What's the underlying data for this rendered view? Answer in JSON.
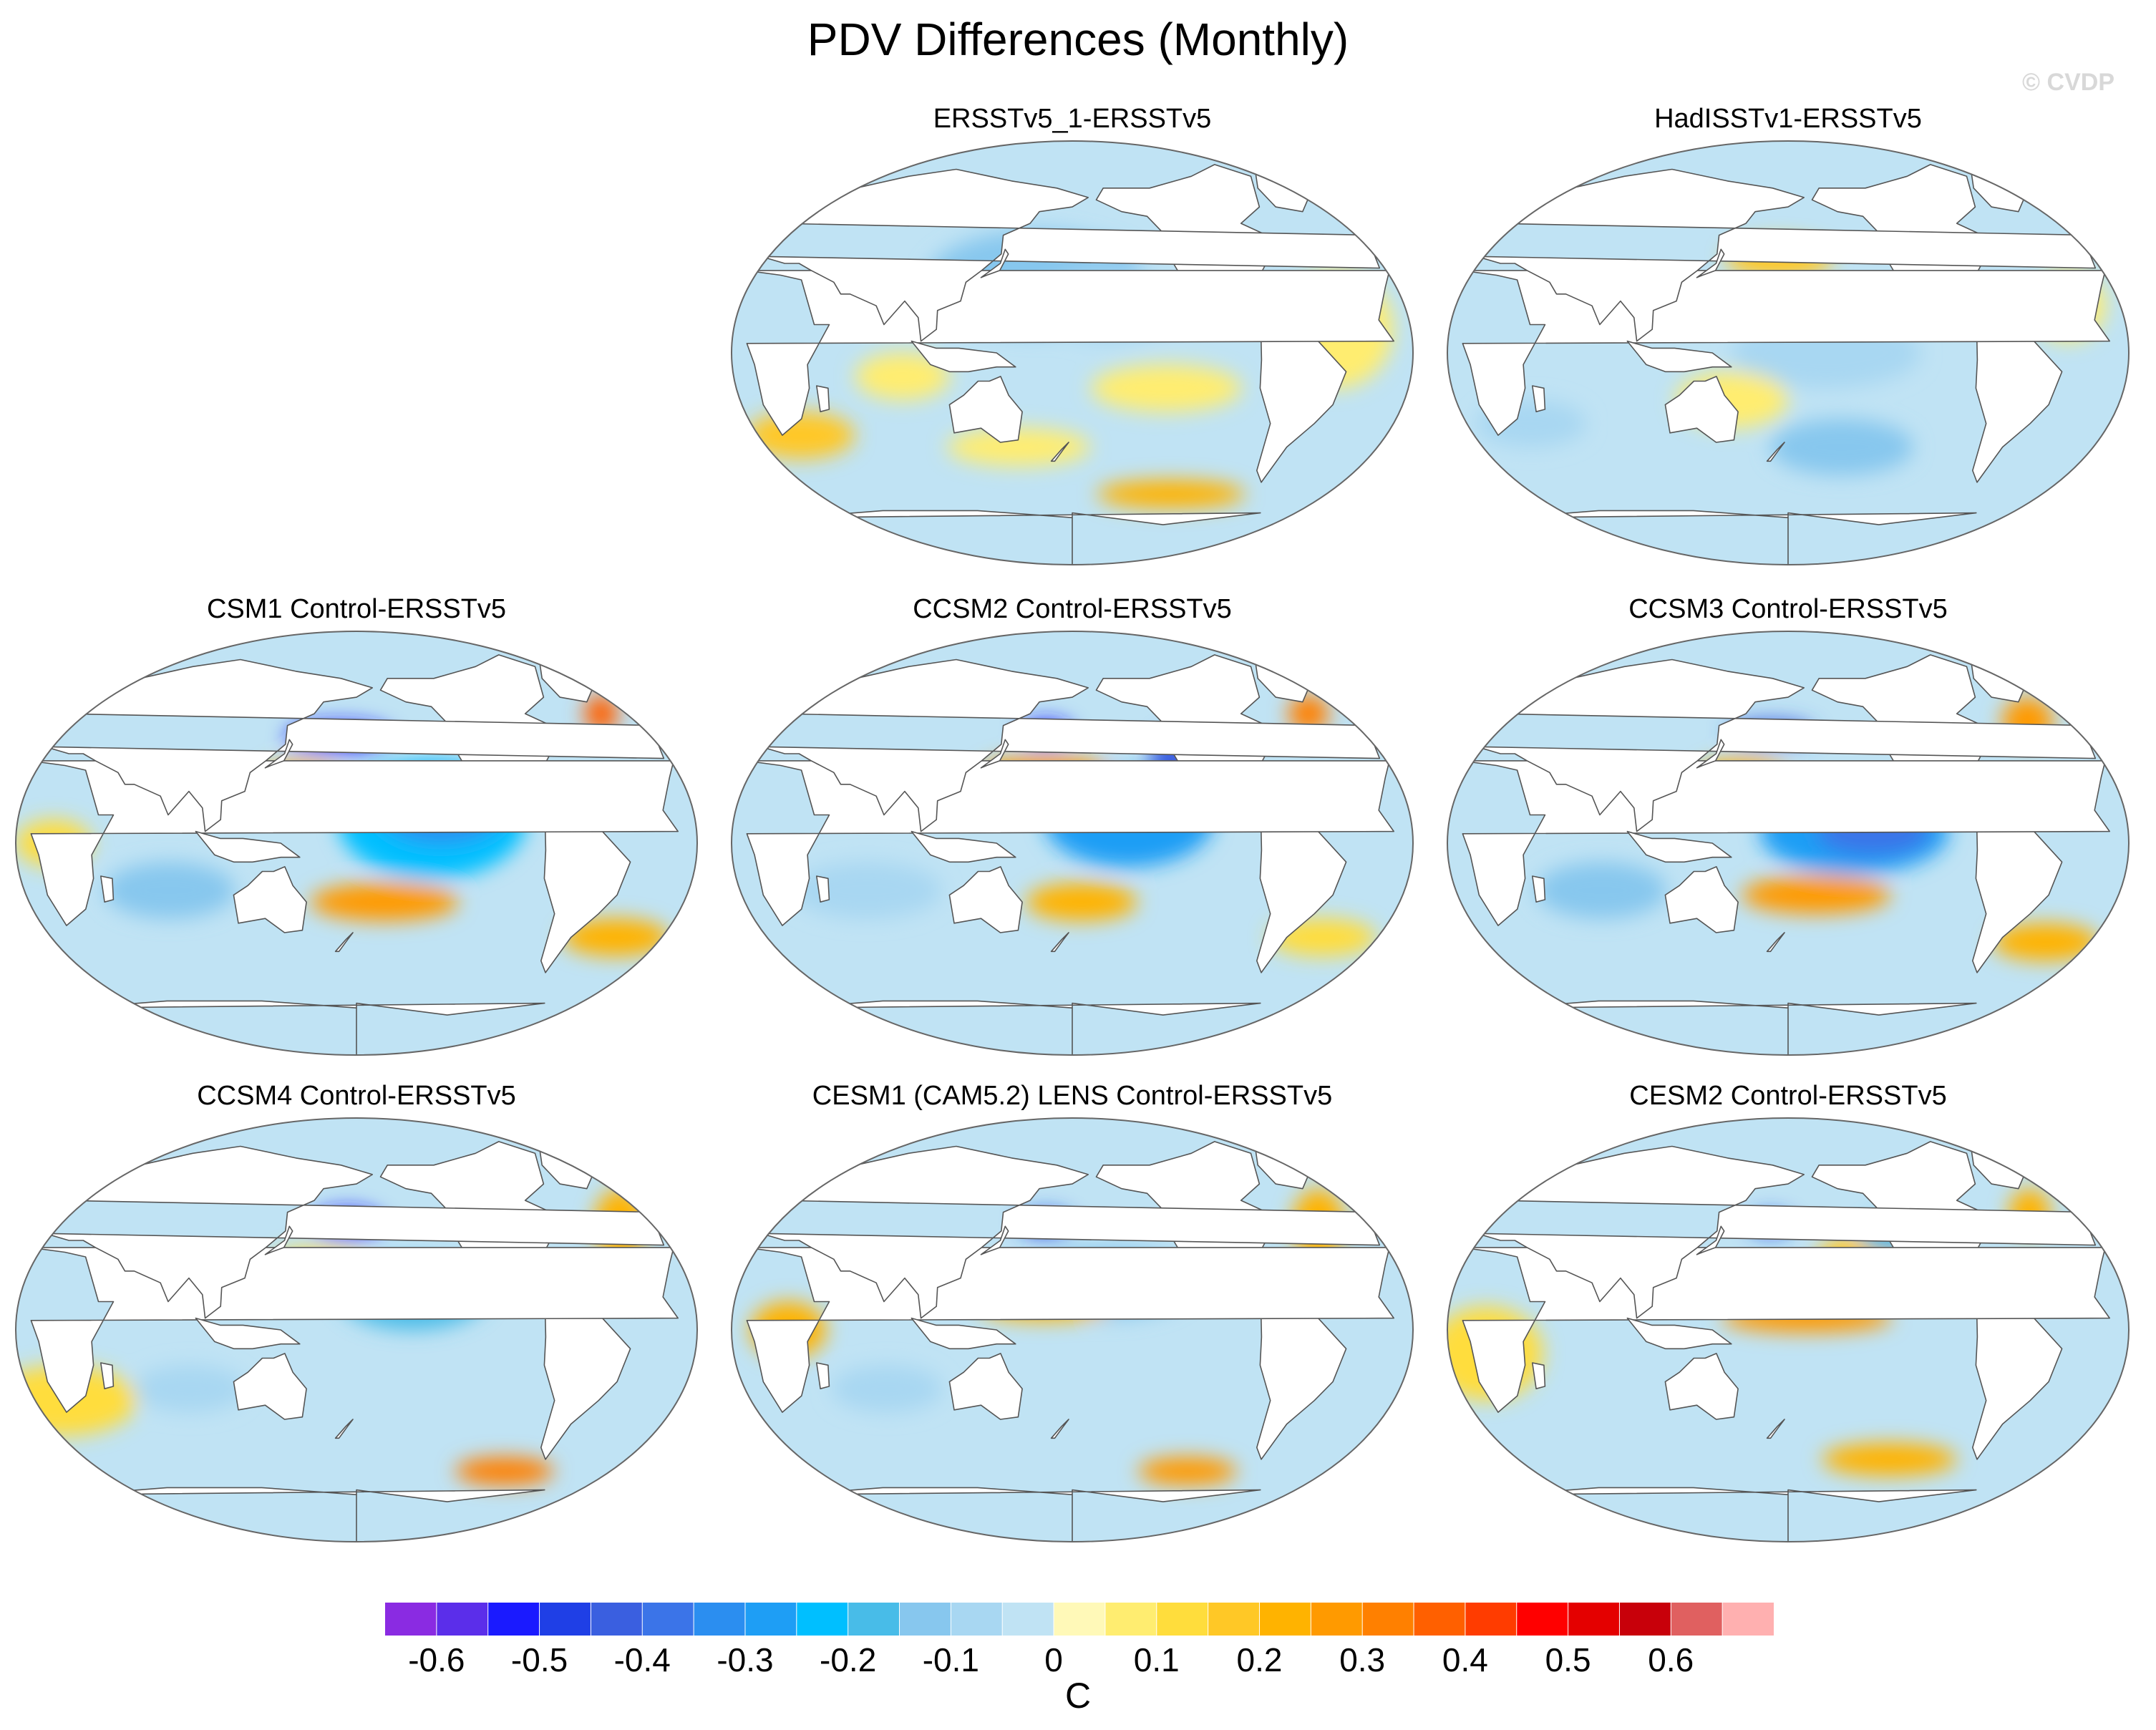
{
  "title": "PDV Differences (Monthly)",
  "credit": "© CVDP",
  "colors": {
    "land": "#ffffff",
    "coast": "#555555",
    "ocean_neutral": "#c0e3f4"
  },
  "panels": [
    {
      "title": "ERSSTv5_1-ERSSTv5",
      "id": "ersst51",
      "column": 2,
      "row": 1,
      "blobs": [
        {
          "lon": 175,
          "lat": 40,
          "rlon": 40,
          "rlat": 9,
          "level": -0.3
        },
        {
          "lon": 160,
          "lat": 30,
          "rlon": 60,
          "rlat": 22,
          "level": -0.15
        },
        {
          "lon": 200,
          "lat": 20,
          "rlon": 40,
          "rlat": 15,
          "level": -0.1
        },
        {
          "lon": 230,
          "lat": -15,
          "rlon": 40,
          "rlat": 10,
          "level": 0.05
        },
        {
          "lon": 150,
          "lat": -40,
          "rlon": 40,
          "rlat": 8,
          "level": 0.05
        },
        {
          "lon": 30,
          "lat": -35,
          "rlon": 30,
          "rlat": 10,
          "level": 0.15
        },
        {
          "lon": 240,
          "lat": -60,
          "rlon": 45,
          "rlat": 6,
          "level": 0.2
        },
        {
          "lon": 320,
          "lat": 10,
          "rlon": 30,
          "rlat": 25,
          "level": 0.05
        },
        {
          "lon": 90,
          "lat": -10,
          "rlon": 25,
          "rlat": 10,
          "level": 0.05
        }
      ]
    },
    {
      "title": "HadISSTv1-ERSSTv5",
      "id": "hadisst",
      "column": 3,
      "row": 1,
      "blobs": [
        {
          "lon": 175,
          "lat": 40,
          "rlon": 30,
          "rlat": 8,
          "level": 0.15
        },
        {
          "lon": 200,
          "lat": 0,
          "rlon": 50,
          "rlat": 15,
          "level": -0.1
        },
        {
          "lon": 210,
          "lat": -40,
          "rlon": 40,
          "rlat": 12,
          "level": -0.15
        },
        {
          "lon": 150,
          "lat": -20,
          "rlon": 30,
          "rlat": 12,
          "level": 0.05
        },
        {
          "lon": 40,
          "lat": -30,
          "rlon": 30,
          "rlat": 10,
          "level": -0.1
        },
        {
          "lon": 330,
          "lat": 20,
          "rlon": 20,
          "rlat": 15,
          "level": 0.05
        }
      ]
    },
    {
      "title": "CSM1 Control-ERSSTv5",
      "id": "csm1",
      "column": 1,
      "row": 2,
      "blobs": [
        {
          "lon": 220,
          "lat": 10,
          "rlon": 50,
          "rlat": 25,
          "level": -0.25
        },
        {
          "lon": 225,
          "lat": 15,
          "rlon": 35,
          "rlat": 15,
          "level": -0.35
        },
        {
          "lon": 170,
          "lat": 45,
          "rlon": 30,
          "rlat": 6,
          "level": -0.55
        },
        {
          "lon": 150,
          "lat": 25,
          "rlon": 25,
          "rlat": 10,
          "level": 0.2
        },
        {
          "lon": 195,
          "lat": -25,
          "rlon": 40,
          "rlat": 8,
          "level": 0.25
        },
        {
          "lon": 325,
          "lat": -40,
          "rlon": 30,
          "rlat": 8,
          "level": 0.2
        },
        {
          "lon": 325,
          "lat": 55,
          "rlon": 10,
          "rlat": 8,
          "level": 0.35
        },
        {
          "lon": 80,
          "lat": -20,
          "rlon": 35,
          "rlat": 12,
          "level": -0.15
        },
        {
          "lon": 20,
          "lat": 0,
          "rlon": 20,
          "rlat": 10,
          "level": 0.1
        }
      ]
    },
    {
      "title": "CCSM2 Control-ERSSTv5",
      "id": "ccsm2",
      "column": 2,
      "row": 2,
      "blobs": [
        {
          "lon": 210,
          "lat": 10,
          "rlon": 45,
          "rlat": 20,
          "level": -0.3
        },
        {
          "lon": 235,
          "lat": 35,
          "rlon": 12,
          "rlat": 12,
          "level": -0.45
        },
        {
          "lon": 165,
          "lat": 47,
          "rlon": 15,
          "rlat": 5,
          "level": -0.55
        },
        {
          "lon": 165,
          "lat": 30,
          "rlon": 35,
          "rlat": 7,
          "level": 0.25
        },
        {
          "lon": 185,
          "lat": -25,
          "rlon": 30,
          "rlat": 8,
          "level": 0.2
        },
        {
          "lon": 320,
          "lat": -40,
          "rlon": 30,
          "rlat": 8,
          "level": 0.1
        },
        {
          "lon": 320,
          "lat": 55,
          "rlon": 12,
          "rlat": 8,
          "level": 0.3
        },
        {
          "lon": 70,
          "lat": -20,
          "rlon": 40,
          "rlat": 12,
          "level": -0.1
        }
      ]
    },
    {
      "title": "CCSM3 Control-ERSSTv5",
      "id": "ccsm3",
      "column": 3,
      "row": 2,
      "blobs": [
        {
          "lon": 215,
          "lat": 5,
          "rlon": 50,
          "rlat": 18,
          "level": -0.3
        },
        {
          "lon": 225,
          "lat": 5,
          "rlon": 30,
          "rlat": 10,
          "level": -0.4
        },
        {
          "lon": 170,
          "lat": 47,
          "rlon": 25,
          "rlat": 5,
          "level": -0.45
        },
        {
          "lon": 155,
          "lat": 28,
          "rlon": 25,
          "rlat": 8,
          "level": 0.2
        },
        {
          "lon": 195,
          "lat": -22,
          "rlon": 40,
          "rlat": 8,
          "level": 0.25
        },
        {
          "lon": 325,
          "lat": -42,
          "rlon": 30,
          "rlat": 8,
          "level": 0.2
        },
        {
          "lon": 320,
          "lat": 52,
          "rlon": 15,
          "rlat": 10,
          "level": 0.25
        },
        {
          "lon": 80,
          "lat": -20,
          "rlon": 35,
          "rlat": 12,
          "level": -0.15
        }
      ]
    },
    {
      "title": "CCSM4 Control-ERSSTv5",
      "id": "ccsm4",
      "column": 1,
      "row": 3,
      "blobs": [
        {
          "lon": 210,
          "lat": 15,
          "rlon": 40,
          "rlat": 15,
          "level": -0.2
        },
        {
          "lon": 175,
          "lat": 45,
          "rlon": 20,
          "rlat": 6,
          "level": -0.55
        },
        {
          "lon": 160,
          "lat": 25,
          "rlon": 30,
          "rlat": 10,
          "level": 0.1
        },
        {
          "lon": 270,
          "lat": -60,
          "rlon": 30,
          "rlat": 6,
          "level": 0.3
        },
        {
          "lon": 330,
          "lat": 45,
          "rlon": 15,
          "rlat": 15,
          "level": 0.2
        },
        {
          "lon": 20,
          "lat": -30,
          "rlon": 40,
          "rlat": 15,
          "level": 0.1
        },
        {
          "lon": 90,
          "lat": -25,
          "rlon": 30,
          "rlat": 10,
          "level": -0.1
        }
      ]
    },
    {
      "title": "CESM1 (CAM5.2) LENS Control-ERSSTv5",
      "id": "cesm1",
      "column": 2,
      "row": 3,
      "blobs": [
        {
          "lon": 200,
          "lat": 20,
          "rlon": 45,
          "rlat": 15,
          "level": -0.15
        },
        {
          "lon": 165,
          "lat": 45,
          "rlon": 15,
          "rlat": 5,
          "level": -0.5
        },
        {
          "lon": 165,
          "lat": 10,
          "rlon": 35,
          "rlat": 6,
          "level": 0.2
        },
        {
          "lon": 250,
          "lat": -60,
          "rlon": 30,
          "rlat": 6,
          "level": 0.25
        },
        {
          "lon": 320,
          "lat": 45,
          "rlon": 15,
          "rlat": 15,
          "level": 0.2
        },
        {
          "lon": 30,
          "lat": 0,
          "rlon": 20,
          "rlat": 12,
          "level": 0.2
        },
        {
          "lon": 80,
          "lat": -25,
          "rlon": 30,
          "rlat": 10,
          "level": -0.1
        }
      ]
    },
    {
      "title": "CESM2 Control-ERSSTv5",
      "id": "cesm2",
      "column": 3,
      "row": 3,
      "blobs": [
        {
          "lon": 190,
          "lat": 5,
          "rlon": 45,
          "rlat": 6,
          "level": 0.25
        },
        {
          "lon": 170,
          "lat": 45,
          "rlon": 12,
          "rlat": 4,
          "level": -0.5
        },
        {
          "lon": 220,
          "lat": 30,
          "rlon": 25,
          "rlat": 10,
          "level": 0.15
        },
        {
          "lon": 240,
          "lat": 40,
          "rlon": 20,
          "rlat": 8,
          "level": -0.2
        },
        {
          "lon": 240,
          "lat": -55,
          "rlon": 40,
          "rlat": 7,
          "level": 0.2
        },
        {
          "lon": 320,
          "lat": 50,
          "rlon": 12,
          "rlat": 10,
          "level": 0.2
        },
        {
          "lon": 20,
          "lat": -10,
          "rlon": 30,
          "rlat": 20,
          "level": 0.1
        }
      ]
    }
  ],
  "colorbar": {
    "units": "C",
    "levels": [
      -0.65,
      -0.6,
      -0.55,
      -0.5,
      -0.45,
      -0.4,
      -0.35,
      -0.3,
      -0.25,
      -0.2,
      -0.15,
      -0.1,
      -0.05,
      0,
      0.05,
      0.1,
      0.15,
      0.2,
      0.25,
      0.3,
      0.35,
      0.4,
      0.45,
      0.5,
      0.55,
      0.6,
      0.65
    ],
    "colors": [
      "#8a2be2",
      "#5b2eea",
      "#1a1aff",
      "#1f3fe6",
      "#3a5fe0",
      "#3b74e8",
      "#2b8ef0",
      "#1e9ef5",
      "#00bfff",
      "#48bce8",
      "#87c7ee",
      "#a8d7f2",
      "#c0e3f4",
      "#fff9b8",
      "#ffed70",
      "#ffdd3c",
      "#ffc826",
      "#ffb300",
      "#ff9a00",
      "#ff8000",
      "#ff6000",
      "#ff3c00",
      "#ff0000",
      "#e40000",
      "#c8000a",
      "#e06060",
      "#ffb0b0"
    ],
    "tick_labels": [
      "-0.6",
      "-0.5",
      "-0.4",
      "-0.3",
      "-0.2",
      "-0.1",
      "0",
      "0.1",
      "0.2",
      "0.3",
      "0.4",
      "0.5",
      "0.6"
    ],
    "tick_values": [
      -0.6,
      -0.5,
      -0.4,
      -0.3,
      -0.2,
      -0.1,
      0,
      0.1,
      0.2,
      0.3,
      0.4,
      0.5,
      0.6
    ]
  }
}
